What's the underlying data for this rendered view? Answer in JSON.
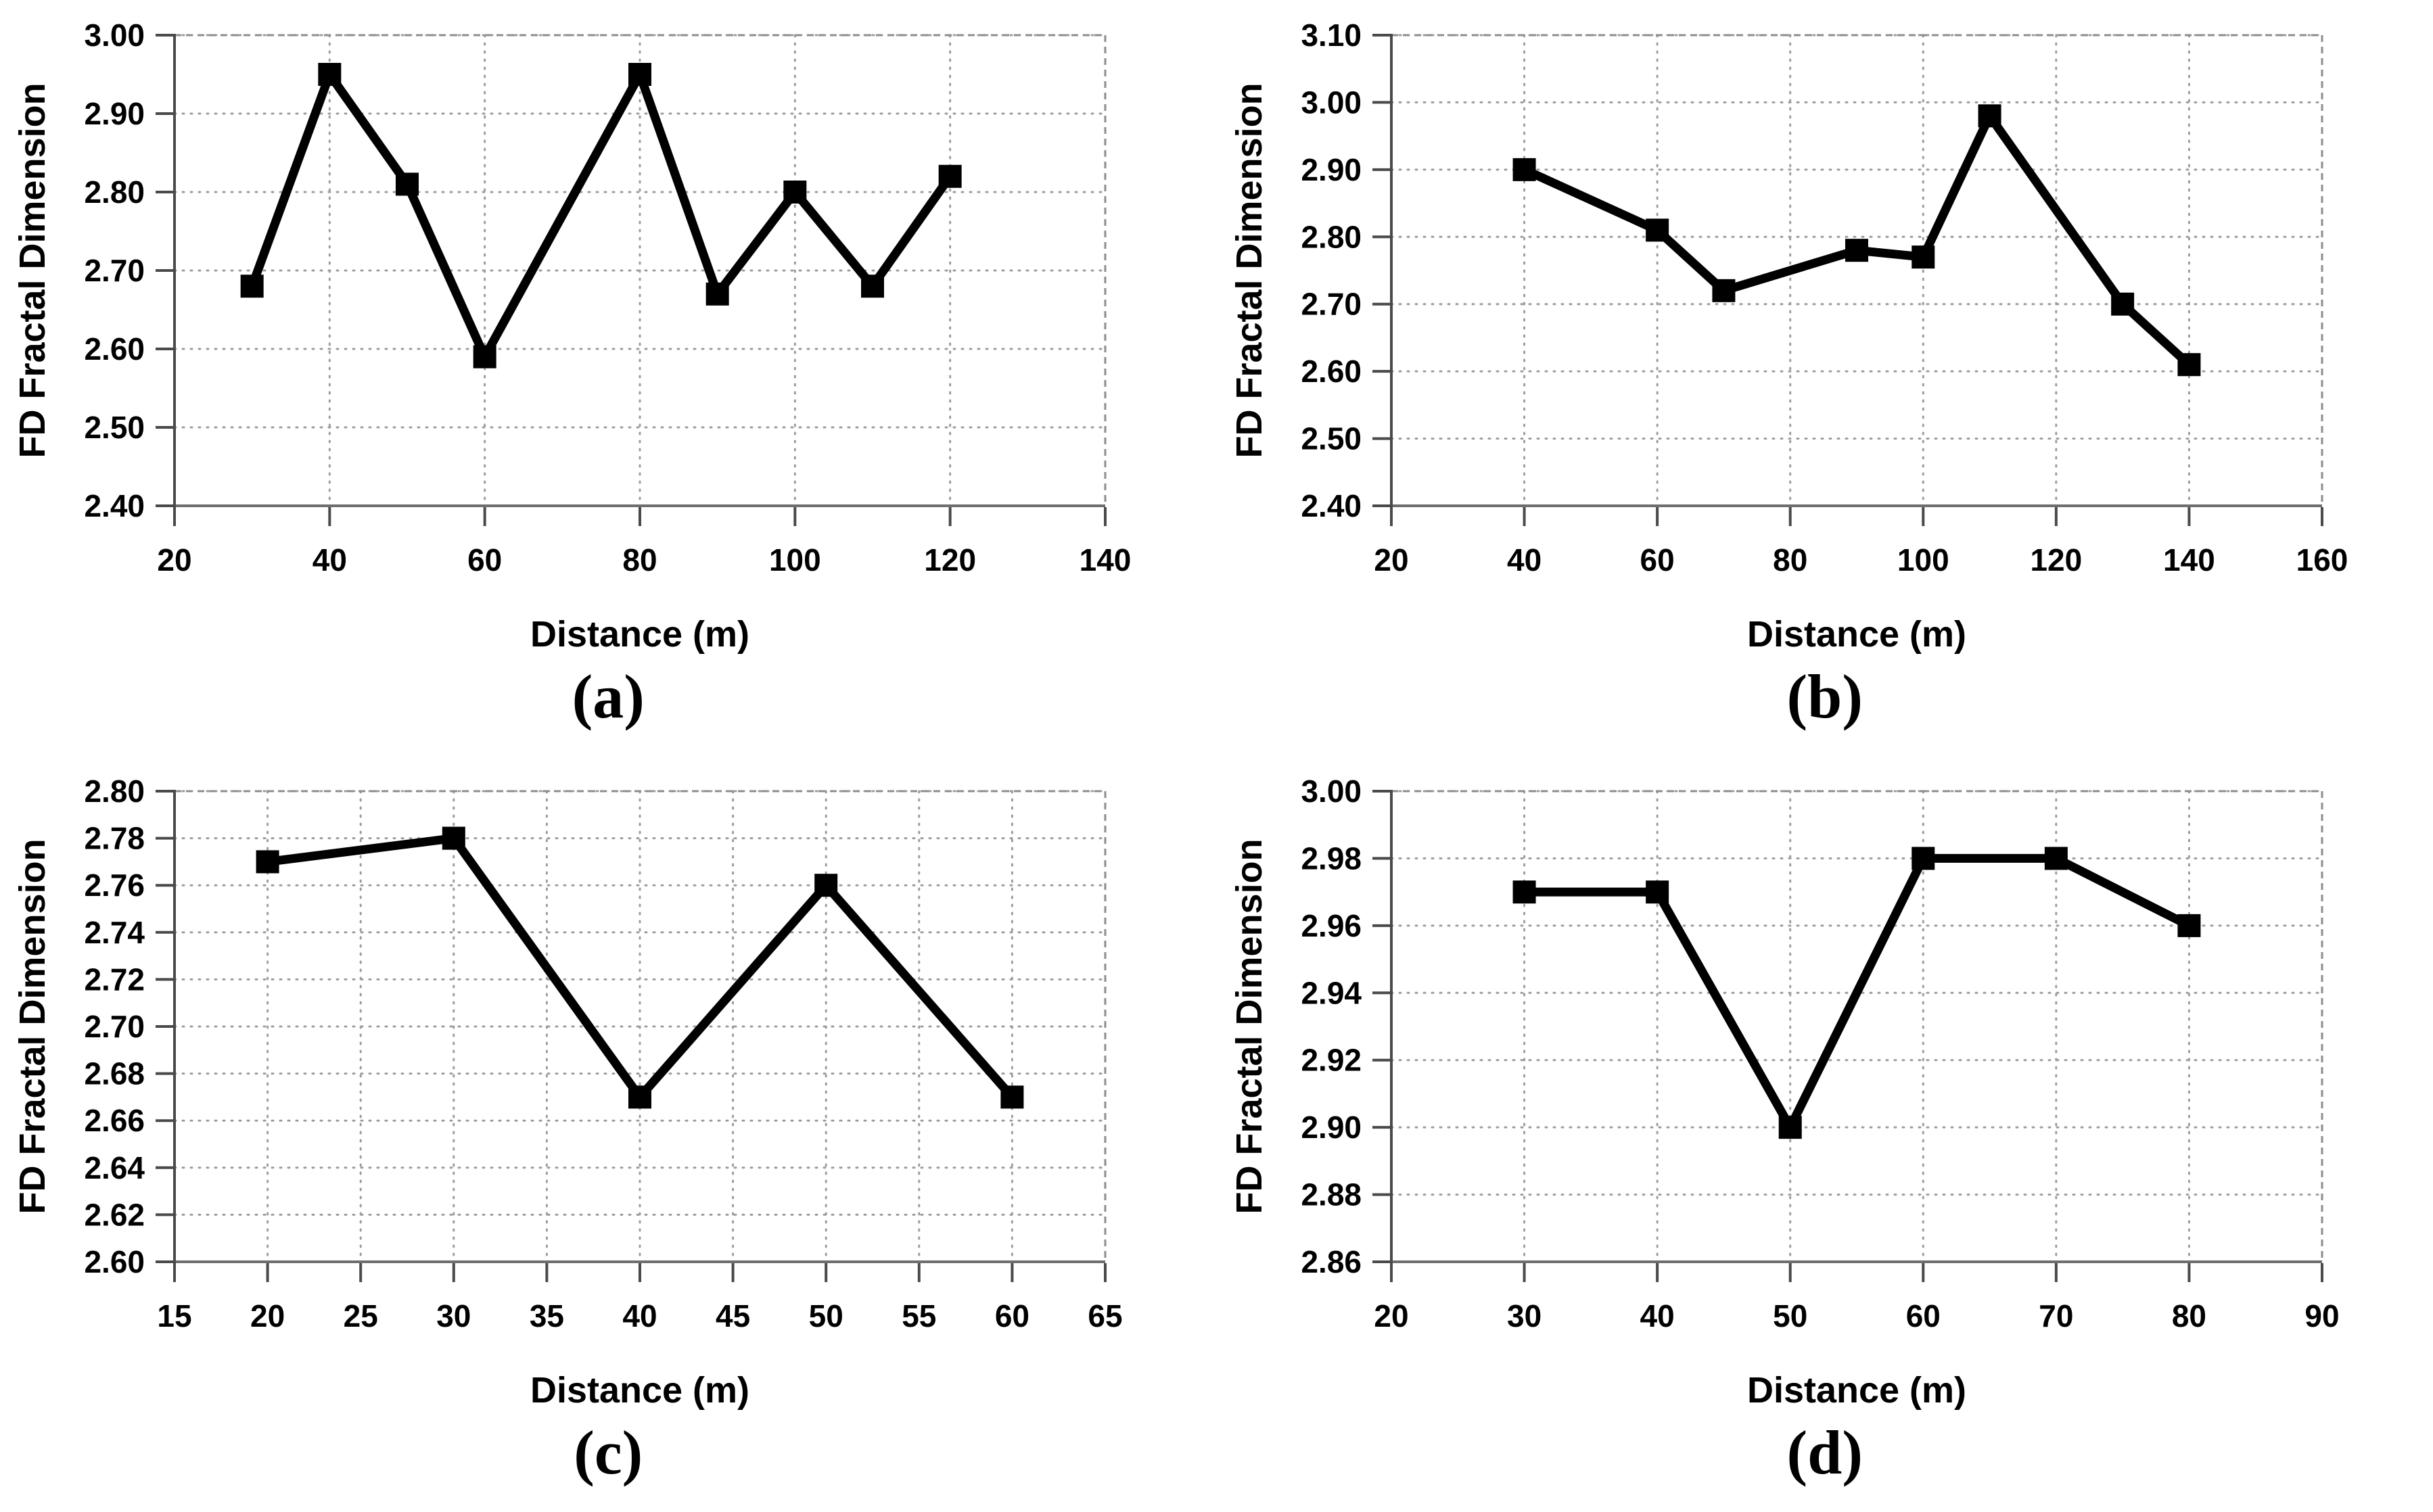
{
  "figure": {
    "background": "#ffffff",
    "colors": {
      "series": "#000000",
      "grid": "#9c9c9c",
      "frame": "#8d8d8d",
      "axis_left": "#4a4a4a",
      "axis_bottom": "#6e6e6e",
      "tick": "#4a4a4a",
      "text": "#000000"
    }
  },
  "chart_data": [
    {
      "type": "line",
      "caption": "(a)",
      "xlabel": "Distance (m)",
      "ylabel": "FD Fractal Dimension",
      "xlim": [
        20,
        140
      ],
      "xticks": [
        20,
        40,
        60,
        80,
        100,
        120,
        140
      ],
      "ylim": [
        2.4,
        3.0
      ],
      "yticks": [
        2.4,
        2.5,
        2.6,
        2.7,
        2.8,
        2.9,
        3.0
      ],
      "ytick_decimals": 2,
      "grid": "on",
      "legend": "none",
      "marker": "square",
      "x": [
        30,
        40,
        50,
        60,
        80,
        90,
        100,
        110,
        120
      ],
      "y": [
        2.68,
        2.95,
        2.81,
        2.59,
        2.95,
        2.67,
        2.8,
        2.68,
        2.82
      ]
    },
    {
      "type": "line",
      "caption": "(b)",
      "xlabel": "Distance (m)",
      "ylabel": "FD Fractal Dimension",
      "xlim": [
        20,
        160
      ],
      "xticks": [
        20,
        40,
        60,
        80,
        100,
        120,
        140,
        160
      ],
      "ylim": [
        2.4,
        3.1
      ],
      "yticks": [
        2.4,
        2.5,
        2.6,
        2.7,
        2.8,
        2.9,
        3.0,
        3.1
      ],
      "ytick_decimals": 2,
      "grid": "on",
      "legend": "none",
      "marker": "square",
      "x": [
        40,
        60,
        70,
        90,
        100,
        110,
        130,
        140
      ],
      "y": [
        2.9,
        2.81,
        2.72,
        2.78,
        2.77,
        2.98,
        2.7,
        2.61
      ]
    },
    {
      "type": "line",
      "caption": "(c)",
      "xlabel": "Distance (m)",
      "ylabel": "FD Fractal Dimension",
      "xlim": [
        15,
        65
      ],
      "xticks": [
        15,
        20,
        25,
        30,
        35,
        40,
        45,
        50,
        55,
        60,
        65
      ],
      "ylim": [
        2.6,
        2.8
      ],
      "yticks": [
        2.6,
        2.62,
        2.64,
        2.66,
        2.68,
        2.7,
        2.72,
        2.74,
        2.76,
        2.78,
        2.8
      ],
      "ytick_decimals": 2,
      "grid": "on",
      "legend": "none",
      "marker": "square",
      "x": [
        20,
        30,
        40,
        50,
        60
      ],
      "y": [
        2.77,
        2.78,
        2.67,
        2.76,
        2.67
      ]
    },
    {
      "type": "line",
      "caption": "(d)",
      "xlabel": "Distance (m)",
      "ylabel": "FD Fractal Dimension",
      "xlim": [
        20,
        90
      ],
      "xticks": [
        20,
        30,
        40,
        50,
        60,
        70,
        80,
        90
      ],
      "ylim": [
        2.86,
        3.0
      ],
      "yticks": [
        2.86,
        2.88,
        2.9,
        2.92,
        2.94,
        2.96,
        2.98,
        3.0
      ],
      "ytick_decimals": 2,
      "grid": "on",
      "legend": "none",
      "marker": "square",
      "x": [
        30,
        40,
        50,
        60,
        70,
        80
      ],
      "y": [
        2.97,
        2.97,
        2.9,
        2.98,
        2.98,
        2.96
      ]
    }
  ]
}
